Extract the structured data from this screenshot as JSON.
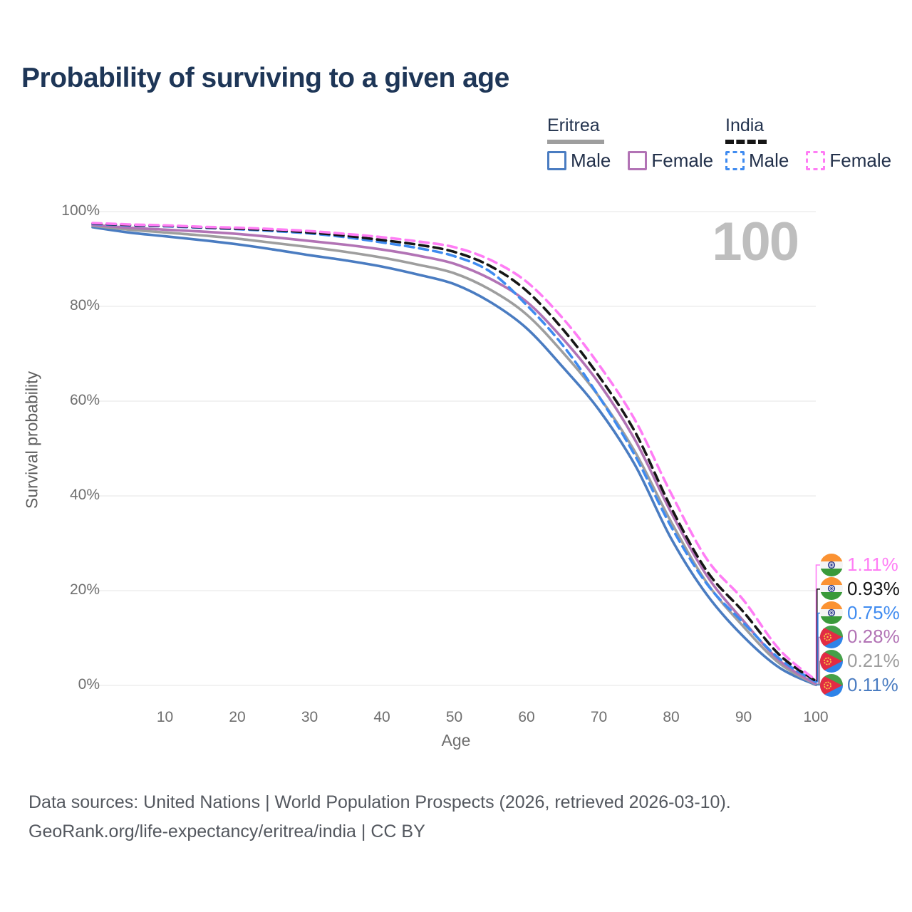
{
  "title": "Probability of surviving to a given age",
  "watermark": "100",
  "colors": {
    "title_text": "#1e3657",
    "eritrea_male": "#4A7CC1",
    "eritrea_overall": "#9E9E9E",
    "eritrea_female": "#B273B5",
    "india_male": "#3F8BF0",
    "india_overall": "#161616",
    "india_female": "#FF7DF5",
    "gridline": "#E9E9E9",
    "watermark_gray": "#BEBEBE"
  },
  "legend": {
    "groups": [
      {
        "id": "eritrea",
        "label": "Eritrea",
        "line_style": "solid",
        "line_color": "#9E9E9E",
        "items": [
          {
            "label": "Male",
            "color": "#4A7CC1",
            "style": "solid"
          },
          {
            "label": "Female",
            "color": "#B273B5",
            "style": "solid"
          }
        ]
      },
      {
        "id": "india",
        "label": "India",
        "line_style": "dashed",
        "line_color": "#161616",
        "items": [
          {
            "label": "Male",
            "color": "#3F8BF0",
            "style": "dashed"
          },
          {
            "label": "Female",
            "color": "#FF7DF5",
            "style": "dashed"
          }
        ]
      }
    ]
  },
  "chart_data": {
    "type": "line",
    "title": "Probability of surviving to a given age",
    "xlabel": "Age",
    "ylabel": "Survival probability",
    "xlim": [
      0,
      100
    ],
    "ylim": [
      0,
      100
    ],
    "grid": "horizontal",
    "legend_position": "top-right",
    "x_ticks": [
      {
        "label": "10",
        "value": 10
      },
      {
        "label": "20",
        "value": 20
      },
      {
        "label": "30",
        "value": 30
      },
      {
        "label": "40",
        "value": 40
      },
      {
        "label": "50",
        "value": 50
      },
      {
        "label": "60",
        "value": 60
      },
      {
        "label": "70",
        "value": 70
      },
      {
        "label": "80",
        "value": 80
      },
      {
        "label": "90",
        "value": 90
      },
      {
        "label": "100",
        "value": 100
      }
    ],
    "y_ticks": [
      {
        "label": "100%",
        "value": 100
      },
      {
        "label": "80%",
        "value": 80
      },
      {
        "label": "60%",
        "value": 60
      },
      {
        "label": "40%",
        "value": 40
      },
      {
        "label": "20%",
        "value": 20
      },
      {
        "label": "0%",
        "value": 0
      }
    ],
    "ages": [
      0,
      5,
      10,
      15,
      20,
      25,
      30,
      35,
      40,
      45,
      50,
      55,
      60,
      65,
      70,
      75,
      80,
      85,
      90,
      95,
      100
    ],
    "series": [
      {
        "id": "eritrea_male",
        "name": "Eritrea Male",
        "country": "eritrea",
        "style": "solid",
        "color": "#4A7CC1",
        "end_value_pct": 0.11,
        "values": [
          96.7,
          95.6,
          94.8,
          94.0,
          93.1,
          92.0,
          90.8,
          89.7,
          88.4,
          86.7,
          84.7,
          80.9,
          75.4,
          67.2,
          58.2,
          46.5,
          31.0,
          19.0,
          10.3,
          3.7,
          0.11
        ]
      },
      {
        "id": "eritrea_overall",
        "name": "Eritrea",
        "country": "eritrea",
        "style": "solid",
        "color": "#9E9E9E",
        "end_value_pct": 0.21,
        "values": [
          97.0,
          96.2,
          95.6,
          95.0,
          94.3,
          93.4,
          92.5,
          91.5,
          90.3,
          88.8,
          87.0,
          83.5,
          78.3,
          70.3,
          61.0,
          49.3,
          34.5,
          21.5,
          12.4,
          4.6,
          0.21
        ]
      },
      {
        "id": "eritrea_female",
        "name": "Eritrea Female",
        "country": "eritrea",
        "style": "solid",
        "color": "#B273B5",
        "end_value_pct": 0.28,
        "values": [
          97.2,
          96.6,
          96.2,
          95.8,
          95.3,
          94.6,
          93.8,
          93.0,
          92.0,
          90.7,
          89.0,
          85.8,
          81.0,
          73.2,
          63.8,
          51.8,
          36.5,
          23.0,
          13.6,
          5.2,
          0.28
        ]
      },
      {
        "id": "india_male",
        "name": "India Male",
        "country": "india",
        "style": "dashed",
        "color": "#3F8BF0",
        "end_value_pct": 0.75,
        "values": [
          97.4,
          97.1,
          96.9,
          96.6,
          96.3,
          95.9,
          95.4,
          94.6,
          93.5,
          92.3,
          90.6,
          87.3,
          80.3,
          71.8,
          61.0,
          48.5,
          33.5,
          21.3,
          13.2,
          5.6,
          0.75
        ]
      },
      {
        "id": "india_overall",
        "name": "India",
        "country": "india",
        "style": "dashed",
        "color": "#161616",
        "end_value_pct": 0.93,
        "values": [
          97.5,
          97.2,
          97.0,
          96.7,
          96.4,
          96.1,
          95.6,
          94.9,
          94.0,
          93.0,
          91.5,
          88.5,
          83.3,
          75.2,
          65.3,
          53.5,
          37.5,
          24.0,
          15.5,
          6.4,
          0.93
        ]
      },
      {
        "id": "india_female",
        "name": "India Female",
        "country": "india",
        "style": "dashed",
        "color": "#FF7DF5",
        "end_value_pct": 1.11,
        "values": [
          97.6,
          97.3,
          97.1,
          96.8,
          96.6,
          96.3,
          95.9,
          95.3,
          94.6,
          93.7,
          92.5,
          89.8,
          85.2,
          77.5,
          67.7,
          56.0,
          40.5,
          26.5,
          18.0,
          7.5,
          1.11
        ]
      }
    ]
  },
  "end_labels": [
    {
      "series_id": "india_female",
      "country": "india",
      "value": "1.11%"
    },
    {
      "series_id": "india_overall",
      "country": "india",
      "value": "0.93%"
    },
    {
      "series_id": "india_male",
      "country": "india",
      "value": "0.75%"
    },
    {
      "series_id": "eritrea_female",
      "country": "eritrea",
      "value": "0.28%"
    },
    {
      "series_id": "eritrea_overall",
      "country": "eritrea",
      "value": "0.21%"
    },
    {
      "series_id": "eritrea_male",
      "country": "eritrea",
      "value": "0.11%"
    }
  ],
  "footer": {
    "line1": "Data sources: United Nations | World Population Prospects (2026, retrieved 2026-03-10).",
    "line2": "GeoRank.org/life-expectancy/eritrea/india | CC BY"
  }
}
